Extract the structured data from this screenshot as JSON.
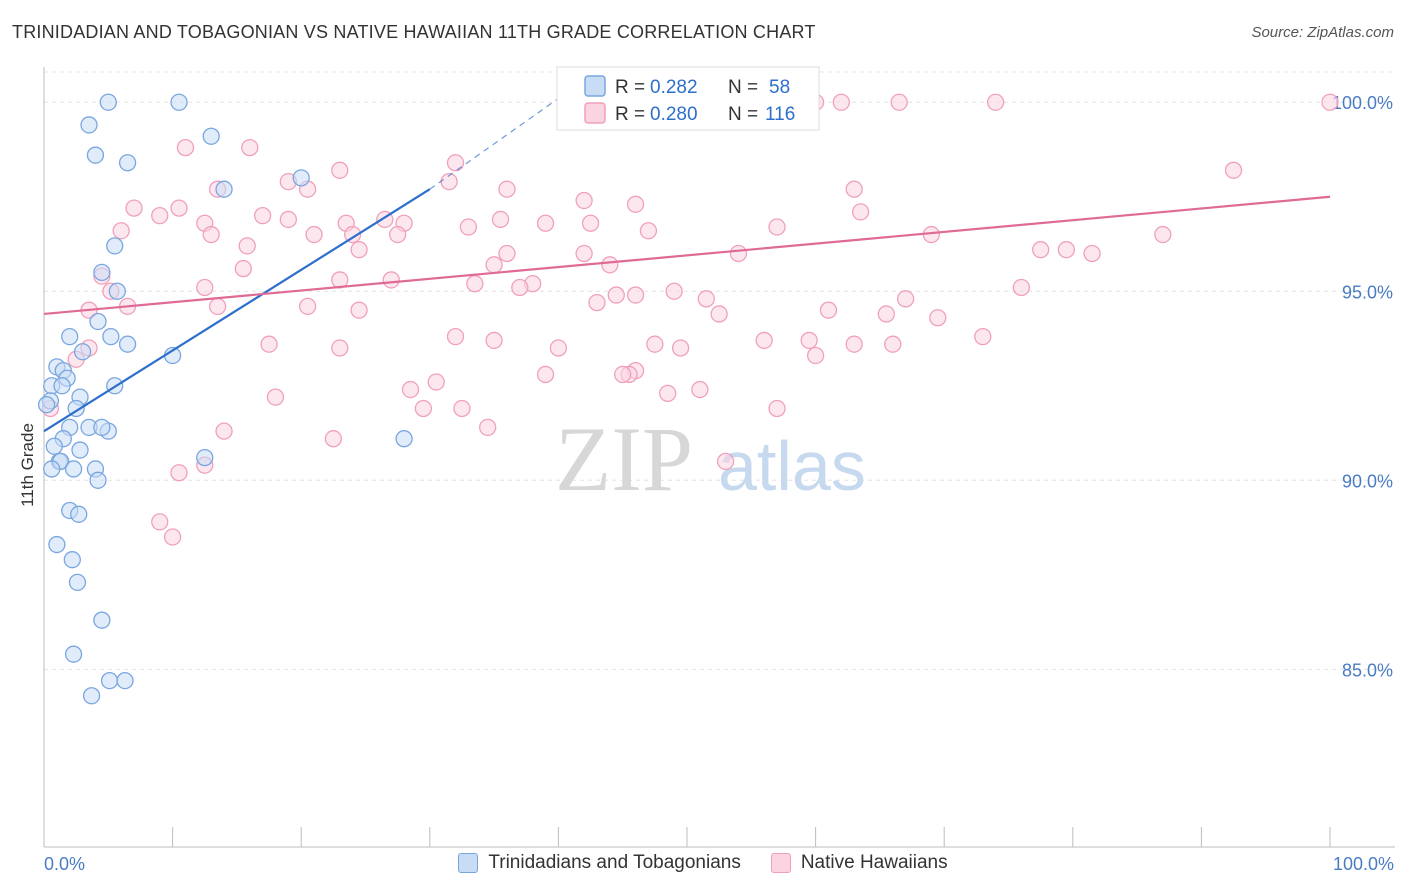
{
  "title": "TRINIDADIAN AND TOBAGONIAN VS NATIVE HAWAIIAN 11TH GRADE CORRELATION CHART",
  "source": "Source: ZipAtlas.com",
  "watermark": {
    "zip": "ZIP",
    "atlas": "atlas"
  },
  "chart_data": {
    "type": "scatter",
    "title": "TRINIDADIAN AND TOBAGONIAN VS NATIVE HAWAIIAN 11TH GRADE CORRELATION CHART",
    "xlabel": "",
    "ylabel": "11th Grade",
    "xlim": [
      0,
      100
    ],
    "ylim": [
      80.3,
      100.8
    ],
    "x_tick_labels": [
      "0.0%",
      "100.0%"
    ],
    "y_ticks": [
      85,
      90,
      95,
      100
    ],
    "y_tick_labels": [
      "85.0%",
      "90.0%",
      "95.0%",
      "100.0%"
    ],
    "grid": true,
    "legend_position": "top-center",
    "series": [
      {
        "name": "Trinidadians and Tobagonians",
        "color": "#7aa6e0",
        "line_color": "#2d6fcc",
        "R": "0.282",
        "N": "58",
        "trend": {
          "x": [
            0,
            30
          ],
          "y": [
            91.3,
            97.7
          ],
          "dashed_to": [
            40,
            100.1
          ]
        },
        "points": [
          [
            5,
            100
          ],
          [
            10.5,
            100
          ],
          [
            3.5,
            99.4
          ],
          [
            13,
            99.1
          ],
          [
            4,
            98.6
          ],
          [
            6.5,
            98.4
          ],
          [
            20,
            98
          ],
          [
            14,
            97.7
          ],
          [
            5.5,
            96.2
          ],
          [
            4.5,
            95.5
          ],
          [
            5.7,
            95
          ],
          [
            4.2,
            94.2
          ],
          [
            5.2,
            93.8
          ],
          [
            2,
            93.8
          ],
          [
            6.5,
            93.6
          ],
          [
            3,
            93.4
          ],
          [
            10,
            93.3
          ],
          [
            1,
            93
          ],
          [
            1.5,
            92.9
          ],
          [
            1.8,
            92.7
          ],
          [
            0.6,
            92.5
          ],
          [
            1.4,
            92.5
          ],
          [
            2.8,
            92.2
          ],
          [
            5.5,
            92.5
          ],
          [
            0.5,
            92.1
          ],
          [
            0.2,
            92
          ],
          [
            2.5,
            91.9
          ],
          [
            2,
            91.4
          ],
          [
            3.5,
            91.4
          ],
          [
            5,
            91.3
          ],
          [
            4.5,
            91.4
          ],
          [
            28,
            91.1
          ],
          [
            1.5,
            91.1
          ],
          [
            0.8,
            90.9
          ],
          [
            2.8,
            90.8
          ],
          [
            1.2,
            90.5
          ],
          [
            1.3,
            90.5
          ],
          [
            12.5,
            90.6
          ],
          [
            0.6,
            90.3
          ],
          [
            2.3,
            90.3
          ],
          [
            4,
            90.3
          ],
          [
            4.2,
            90
          ],
          [
            2,
            89.2
          ],
          [
            2.7,
            89.1
          ],
          [
            1,
            88.3
          ],
          [
            2.2,
            87.9
          ],
          [
            2.6,
            87.3
          ],
          [
            4.5,
            86.3
          ],
          [
            2.3,
            85.4
          ],
          [
            5.1,
            84.7
          ],
          [
            6.3,
            84.7
          ],
          [
            3.7,
            84.3
          ]
        ]
      },
      {
        "name": "Native Hawaiians",
        "color": "#f0a0bc",
        "line_color": "#e06a96",
        "R": "0.280",
        "N": "116",
        "trend": {
          "x": [
            0,
            100
          ],
          "y": [
            94.4,
            97.5
          ]
        },
        "points": [
          [
            41,
            100
          ],
          [
            53,
            100
          ],
          [
            60,
            100
          ],
          [
            62,
            100
          ],
          [
            66.5,
            100
          ],
          [
            74,
            100
          ],
          [
            100,
            100
          ],
          [
            16,
            98.8
          ],
          [
            11,
            98.8
          ],
          [
            32,
            98.4
          ],
          [
            23,
            98.2
          ],
          [
            92.5,
            98.2
          ],
          [
            19,
            97.9
          ],
          [
            31.5,
            97.9
          ],
          [
            20.5,
            97.7
          ],
          [
            13.5,
            97.7
          ],
          [
            63,
            97.7
          ],
          [
            36,
            97.7
          ],
          [
            42,
            97.4
          ],
          [
            46,
            97.3
          ],
          [
            7,
            97.2
          ],
          [
            10.5,
            97.2
          ],
          [
            17,
            97
          ],
          [
            9,
            97
          ],
          [
            63.5,
            97.1
          ],
          [
            23.5,
            96.8
          ],
          [
            12.5,
            96.8
          ],
          [
            28,
            96.8
          ],
          [
            39,
            96.8
          ],
          [
            42.5,
            96.8
          ],
          [
            26.5,
            96.9
          ],
          [
            19,
            96.9
          ],
          [
            35.5,
            96.9
          ],
          [
            33,
            96.7
          ],
          [
            57,
            96.7
          ],
          [
            13,
            96.5
          ],
          [
            6,
            96.6
          ],
          [
            21,
            96.5
          ],
          [
            24,
            96.5
          ],
          [
            27.5,
            96.5
          ],
          [
            47,
            96.6
          ],
          [
            69,
            96.5
          ],
          [
            87,
            96.5
          ],
          [
            15.8,
            96.2
          ],
          [
            24.5,
            96.1
          ],
          [
            36,
            96
          ],
          [
            42,
            96
          ],
          [
            54,
            96
          ],
          [
            77.5,
            96.1
          ],
          [
            79.5,
            96.1
          ],
          [
            81.5,
            96
          ],
          [
            44,
            95.7
          ],
          [
            15.5,
            95.6
          ],
          [
            35,
            95.7
          ],
          [
            4.5,
            95.4
          ],
          [
            23,
            95.3
          ],
          [
            27,
            95.3
          ],
          [
            33.5,
            95.2
          ],
          [
            38,
            95.2
          ],
          [
            37,
            95.1
          ],
          [
            12.5,
            95.1
          ],
          [
            5.2,
            95
          ],
          [
            49,
            95
          ],
          [
            44.5,
            94.9
          ],
          [
            46,
            94.9
          ],
          [
            51.5,
            94.8
          ],
          [
            67,
            94.8
          ],
          [
            76,
            95.1
          ],
          [
            43,
            94.7
          ],
          [
            6.5,
            94.6
          ],
          [
            61,
            94.5
          ],
          [
            3.5,
            94.5
          ],
          [
            20.5,
            94.6
          ],
          [
            24.5,
            94.5
          ],
          [
            13.5,
            94.6
          ],
          [
            52.5,
            94.4
          ],
          [
            65.5,
            94.4
          ],
          [
            69.5,
            94.3
          ],
          [
            73,
            93.8
          ],
          [
            56,
            93.7
          ],
          [
            59.5,
            93.7
          ],
          [
            63,
            93.6
          ],
          [
            66,
            93.6
          ],
          [
            47.5,
            93.6
          ],
          [
            17.5,
            93.6
          ],
          [
            32,
            93.8
          ],
          [
            35,
            93.7
          ],
          [
            23,
            93.5
          ],
          [
            40,
            93.5
          ],
          [
            49.5,
            93.5
          ],
          [
            2.5,
            93.2
          ],
          [
            3.5,
            93.5
          ],
          [
            60,
            93.3
          ],
          [
            46,
            92.9
          ],
          [
            45.5,
            92.8
          ],
          [
            45,
            92.8
          ],
          [
            39,
            92.8
          ],
          [
            30.5,
            92.6
          ],
          [
            28.5,
            92.4
          ],
          [
            18,
            92.2
          ],
          [
            51,
            92.4
          ],
          [
            48.5,
            92.3
          ],
          [
            32.5,
            91.9
          ],
          [
            29.5,
            91.9
          ],
          [
            57,
            91.9
          ],
          [
            34.5,
            91.4
          ],
          [
            14,
            91.3
          ],
          [
            22.5,
            91.1
          ],
          [
            53,
            90.5
          ],
          [
            12.5,
            90.4
          ],
          [
            10.5,
            90.2
          ],
          [
            9,
            88.9
          ],
          [
            10,
            88.5
          ],
          [
            0.5,
            91.9
          ]
        ]
      }
    ]
  },
  "legend": {
    "r_label": "R =",
    "n_label": "N =",
    "items": [
      {
        "r": "0.282",
        "n": "58"
      },
      {
        "r": "0.280",
        "n": "116"
      }
    ]
  },
  "bottom_legend": {
    "items": [
      {
        "label": "Trinidadians and Tobagonians",
        "color": "#7aa6e0"
      },
      {
        "label": "Native Hawaiians",
        "color": "#f0a0bc"
      }
    ]
  }
}
